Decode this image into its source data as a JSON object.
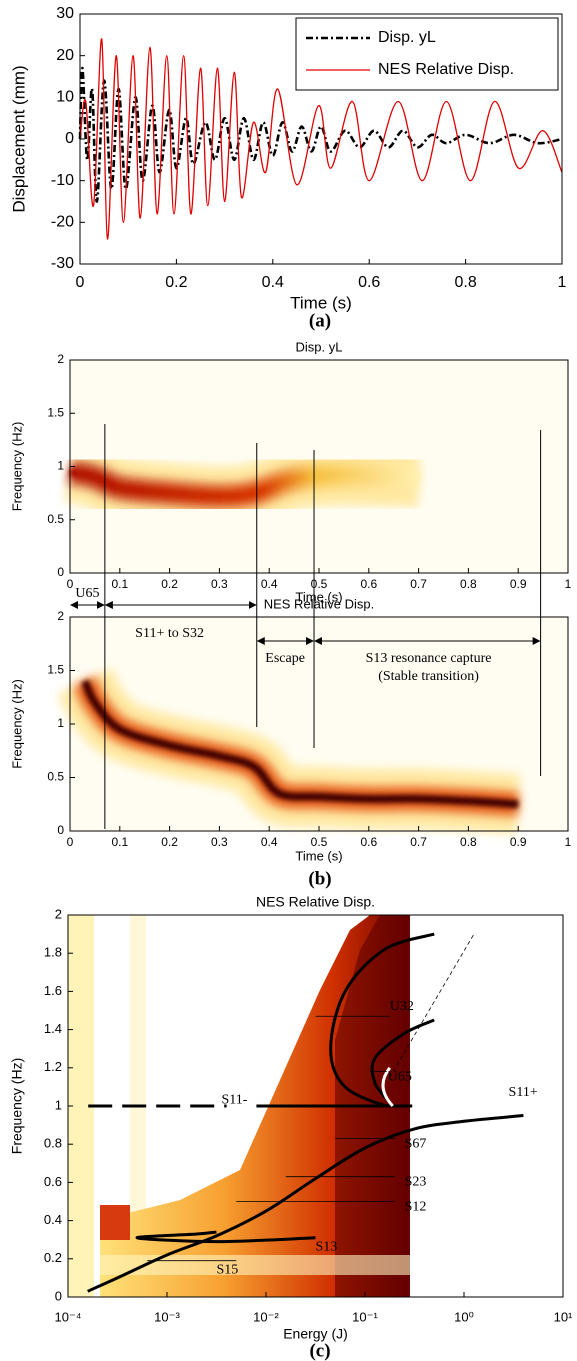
{
  "captions": [
    "(a)",
    "(b)",
    "(c)"
  ],
  "chart_data": [
    {
      "type": "line",
      "xlabel": "Time (s)",
      "ylabel": "Displacement (mm)",
      "xlim": [
        0,
        1
      ],
      "xticks": [
        0,
        0.2,
        0.4,
        0.6,
        0.8,
        1
      ],
      "ylim": [
        -30,
        30
      ],
      "yticks": [
        -30,
        -20,
        -10,
        0,
        10,
        20,
        30
      ],
      "legend": "upper right",
      "series": [
        {
          "name": "Disp. yL",
          "color": "#000000",
          "dash": "dashdot",
          "x": [
            0,
            0.005,
            0.015,
            0.025,
            0.035,
            0.05,
            0.065,
            0.08,
            0.095,
            0.115,
            0.13,
            0.15,
            0.165,
            0.185,
            0.2,
            0.22,
            0.235,
            0.26,
            0.28,
            0.3,
            0.32,
            0.34,
            0.36,
            0.38,
            0.4,
            0.42,
            0.44,
            0.46,
            0.48,
            0.5,
            0.52,
            0.55,
            0.58,
            0.61,
            0.64,
            0.67,
            0.7,
            0.73,
            0.76,
            0.8,
            0.85,
            0.9,
            0.95,
            1
          ],
          "values": [
            0,
            17,
            -5,
            12,
            -15,
            14,
            -12,
            12,
            -12,
            10,
            -10,
            8,
            -8,
            7,
            -7,
            5,
            -6,
            4,
            -5,
            5,
            -5,
            5,
            -5,
            4,
            -4,
            4,
            -3,
            3,
            -3,
            3,
            -3,
            2,
            -2,
            2,
            -2,
            2,
            -2,
            1,
            -1,
            1,
            -1,
            1,
            -1,
            0
          ]
        },
        {
          "name": "NES Relative Disp.",
          "color": "#e00000",
          "dash": "solid",
          "x": [
            0,
            0.012,
            0.028,
            0.045,
            0.057,
            0.075,
            0.09,
            0.11,
            0.125,
            0.145,
            0.16,
            0.18,
            0.195,
            0.215,
            0.23,
            0.25,
            0.265,
            0.285,
            0.3,
            0.32,
            0.335,
            0.36,
            0.385,
            0.41,
            0.45,
            0.495,
            0.52,
            0.565,
            0.6,
            0.66,
            0.71,
            0.76,
            0.81,
            0.86,
            0.91,
            0.96,
            1
          ],
          "values": [
            0,
            9,
            -16,
            24,
            -24,
            20,
            -20,
            20,
            -19,
            22,
            -18,
            20,
            -18,
            20,
            -18,
            17,
            -16,
            17,
            -15,
            16,
            -14,
            4,
            -8,
            12,
            -11,
            8,
            -7,
            9,
            -10,
            9,
            -10,
            9,
            -10,
            9,
            -7,
            2,
            -8
          ]
        }
      ]
    },
    {
      "type": "spectrogram",
      "title": "Disp. yL",
      "xlabel": "Time (s)",
      "ylabel": "Frequency (Hz)",
      "xlim": [
        0,
        1
      ],
      "xticks": [
        0,
        0.1,
        0.2,
        0.3,
        0.4,
        0.5,
        0.6,
        0.7,
        0.8,
        0.9,
        1
      ],
      "ylim": [
        0,
        2
      ],
      "yticks": [
        0,
        0.5,
        1,
        1.5,
        2
      ],
      "ridge": {
        "x": [
          0,
          0.05,
          0.1,
          0.2,
          0.3,
          0.37,
          0.45,
          0.55,
          0.7
        ],
        "values": [
          0.95,
          0.9,
          0.8,
          0.75,
          0.72,
          0.75,
          0.88,
          0.92,
          0.9
        ]
      }
    },
    {
      "type": "spectrogram",
      "title": "NES Relative Disp.",
      "xlabel": "Time (s)",
      "ylabel": "Frequency (Hz)",
      "xlim": [
        0,
        1
      ],
      "xticks": [
        0,
        0.1,
        0.2,
        0.3,
        0.4,
        0.5,
        0.6,
        0.7,
        0.8,
        0.9,
        1
      ],
      "ylim": [
        0,
        2
      ],
      "yticks": [
        0,
        0.5,
        1,
        1.5,
        2
      ],
      "ridge": {
        "x": [
          0.03,
          0.05,
          0.1,
          0.2,
          0.3,
          0.37,
          0.42,
          0.5,
          0.6,
          0.7,
          0.8,
          0.9
        ],
        "values": [
          1.4,
          1.2,
          0.95,
          0.8,
          0.7,
          0.6,
          0.35,
          0.32,
          0.3,
          0.3,
          0.28,
          0.25
        ]
      },
      "annotations": [
        "U65",
        "S11+ to S32",
        "Escape",
        "S13 resonance capture",
        "(Stable transition)"
      ]
    },
    {
      "type": "line",
      "title": "NES Relative Disp.",
      "xlabel": "Energy (J)",
      "ylabel": "Frequency (Hz)",
      "xscale": "log",
      "xlim": [
        0.0001,
        10
      ],
      "xticks": [
        {
          "value": 0.0001,
          "label": "10⁻⁴"
        },
        {
          "value": 0.001,
          "label": "10⁻³"
        },
        {
          "value": 0.01,
          "label": "10⁻²"
        },
        {
          "value": 0.1,
          "label": "10⁻¹"
        },
        {
          "value": 1,
          "label": "10⁰"
        },
        {
          "value": 10,
          "label": "10¹"
        }
      ],
      "ylim": [
        0,
        2
      ],
      "yticks": [
        0,
        0.2,
        0.4,
        0.6,
        0.8,
        1,
        1.2,
        1.4,
        1.6,
        1.8,
        2
      ],
      "series": [
        {
          "color": "#000000",
          "dash": "longdash",
          "x": [
            0.00016,
            0.004
          ],
          "values": [
            1,
            1
          ]
        },
        {
          "color": "#000000",
          "dash": "solid",
          "x": [
            0.008,
            0.3
          ],
          "values": [
            1,
            1
          ]
        },
        {
          "color": "#000000",
          "dash": "solid",
          "x": [
            0.000158,
            0.000316,
            0.001,
            0.00316,
            0.01,
            0.0316,
            0.1,
            0.316,
            1,
            3.98
          ],
          "values": [
            0.03,
            0.1,
            0.22,
            0.32,
            0.45,
            0.62,
            0.78,
            0.88,
            0.92,
            0.95
          ]
        },
        {
          "color": "#000000",
          "dash": "solid",
          "x": [
            0.0316,
            0.00316,
            0.0005,
            0.002,
            0.00316
          ],
          "values": [
            0.31,
            0.29,
            0.31,
            0.33,
            0.34
          ]
        },
        {
          "color": "#000000",
          "dash": "solid",
          "x": [
            0.5,
            0.158,
            0.063,
            0.045,
            0.063,
            0.178,
            0.126,
            0.126,
            0.25,
            0.5
          ],
          "values": [
            1.9,
            1.82,
            1.6,
            1.3,
            1.1,
            1,
            1.12,
            1.25,
            1.38,
            1.45
          ]
        }
      ],
      "annotations": [
        "U32",
        "U65",
        "S11-",
        "S11+",
        "S67",
        "S23",
        "S12",
        "S13",
        "S15"
      ]
    }
  ]
}
